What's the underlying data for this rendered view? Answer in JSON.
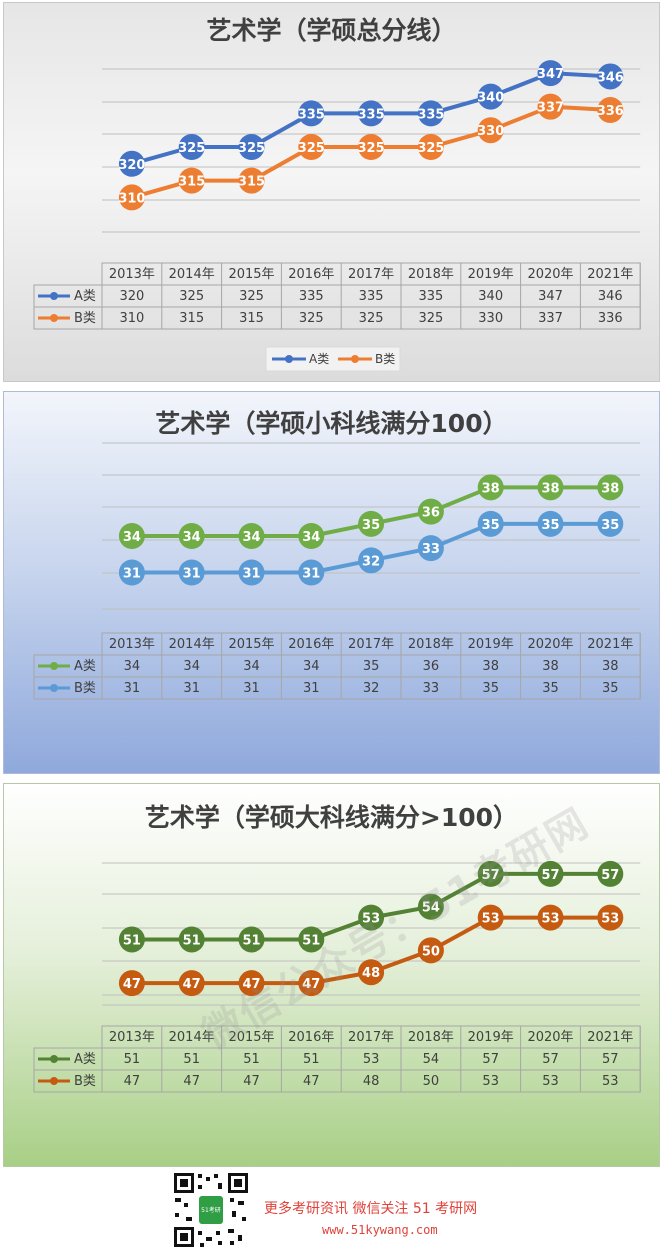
{
  "chart_data": [
    {
      "type": "line",
      "title": "艺术学（学硕总分线）",
      "categories": [
        "2013年",
        "2014年",
        "2015年",
        "2016年",
        "2017年",
        "2018年",
        "2019年",
        "2020年",
        "2021年"
      ],
      "series": [
        {
          "name": "A类",
          "values": [
            320,
            325,
            325,
            335,
            335,
            335,
            340,
            347,
            346
          ],
          "color": "#4472c4"
        },
        {
          "name": "B类",
          "values": [
            310,
            315,
            315,
            325,
            325,
            325,
            330,
            337,
            336
          ],
          "color": "#ed7d31"
        }
      ],
      "ylim": [
        300,
        350
      ],
      "grid": true,
      "legend": "bottom",
      "data_table": true
    },
    {
      "type": "line",
      "title": "艺术学（学硕小科线满分100）",
      "categories": [
        "2013年",
        "2014年",
        "2015年",
        "2016年",
        "2017年",
        "2018年",
        "2019年",
        "2020年",
        "2021年"
      ],
      "series": [
        {
          "name": "A类",
          "values": [
            34,
            34,
            34,
            34,
            35,
            36,
            38,
            38,
            38
          ],
          "color": "#70ad47"
        },
        {
          "name": "B类",
          "values": [
            31,
            31,
            31,
            31,
            32,
            33,
            35,
            35,
            35
          ],
          "color": "#5b9bd5"
        }
      ],
      "ylim": [
        28,
        40
      ],
      "grid": true,
      "data_table": true
    },
    {
      "type": "line",
      "title": "艺术学（学硕大科线满分>100）",
      "categories": [
        "2013年",
        "2014年",
        "2015年",
        "2016年",
        "2017年",
        "2018年",
        "2019年",
        "2020年",
        "2021年"
      ],
      "series": [
        {
          "name": "A类",
          "values": [
            51,
            51,
            51,
            51,
            53,
            54,
            57,
            57,
            57
          ],
          "color": "#548235"
        },
        {
          "name": "B类",
          "values": [
            47,
            47,
            47,
            47,
            48,
            50,
            53,
            53,
            53
          ],
          "color": "#c55a11"
        }
      ],
      "ylim": [
        45,
        58
      ],
      "grid": true,
      "data_table": true
    }
  ],
  "watermark": "微信公众号：51考研网",
  "footer": {
    "line1": "更多考研资讯 微信关注 51 考研网",
    "line2": "www.51kywang.com",
    "qr_label": "51考研"
  }
}
